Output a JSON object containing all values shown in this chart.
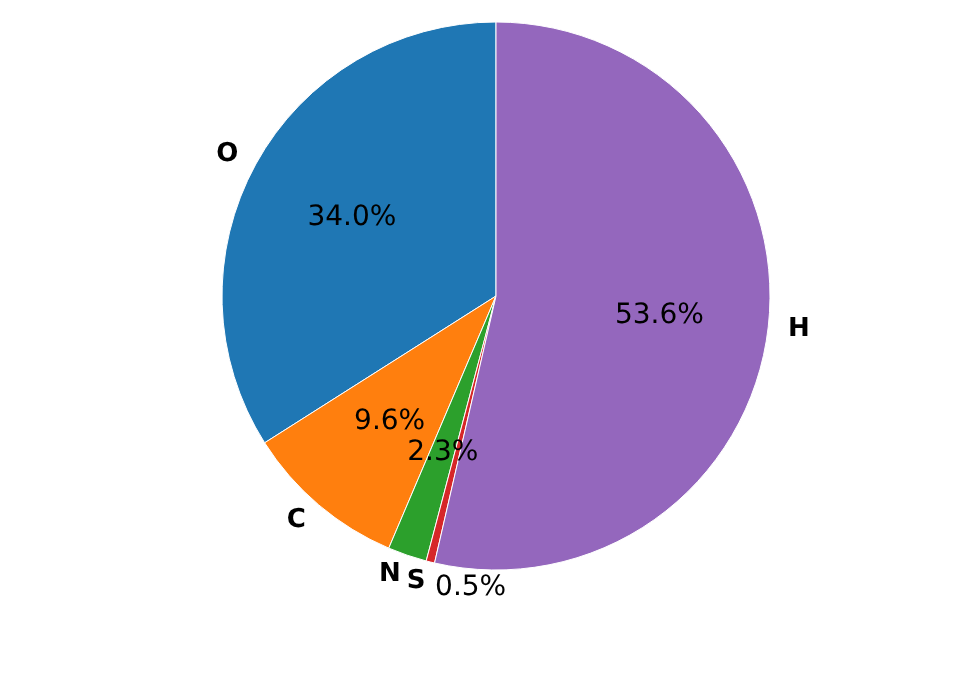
{
  "chart_data": {
    "type": "pie",
    "categories": [
      "O",
      "C",
      "N",
      "S",
      "H"
    ],
    "values": [
      34.0,
      9.6,
      2.3,
      0.5,
      53.6
    ],
    "value_labels": [
      "34.0%",
      "9.6%",
      "2.3%",
      "0.5%",
      "53.6%"
    ],
    "colors": [
      "#1f77b4",
      "#ff7f0e",
      "#2ca02c",
      "#d62728",
      "#9467bd"
    ],
    "legend": false
  }
}
